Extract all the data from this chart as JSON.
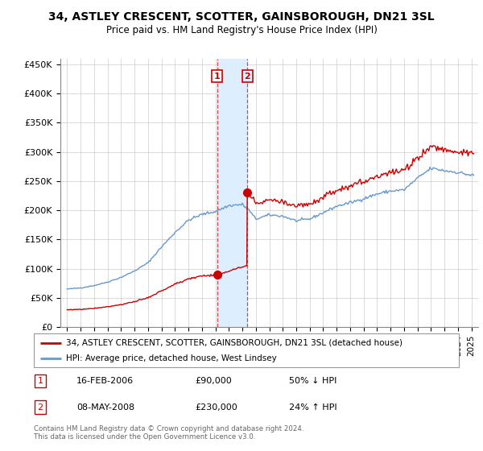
{
  "title": "34, ASTLEY CRESCENT, SCOTTER, GAINSBOROUGH, DN21 3SL",
  "subtitle": "Price paid vs. HM Land Registry's House Price Index (HPI)",
  "legend_line1": "34, ASTLEY CRESCENT, SCOTTER, GAINSBOROUGH, DN21 3SL (detached house)",
  "legend_line2": "HPI: Average price, detached house, West Lindsey",
  "transaction1_date": "16-FEB-2006",
  "transaction1_price": "£90,000",
  "transaction1_hpi": "50% ↓ HPI",
  "transaction2_date": "08-MAY-2008",
  "transaction2_price": "£230,000",
  "transaction2_hpi": "24% ↑ HPI",
  "footer": "Contains HM Land Registry data © Crown copyright and database right 2024.\nThis data is licensed under the Open Government Licence v3.0.",
  "sale1_date_num": 2006.12,
  "sale1_price": 90000,
  "sale2_date_num": 2008.37,
  "sale2_price": 230000,
  "red_color": "#cc0000",
  "blue_color": "#6699cc",
  "shading_color": "#ddeeff",
  "ylim_max": 460000,
  "ylim_min": 0,
  "xlim_min": 1994.5,
  "xlim_max": 2025.5
}
